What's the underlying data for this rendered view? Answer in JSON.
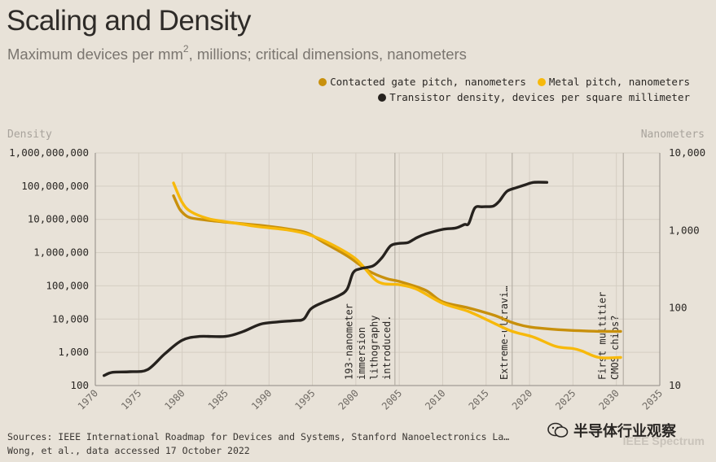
{
  "chart_data": {
    "type": "line",
    "title": "Scaling and Density",
    "subtitle_pre": "Maximum devices per mm",
    "subtitle_sup": "2",
    "subtitle_post": ", millions; critical dimensions, nanometers",
    "left_axis_title": "Density",
    "right_axis_title": "Nanometers",
    "x_range": [
      1970,
      2035
    ],
    "x_ticks": [
      1970,
      1975,
      1980,
      1985,
      1990,
      1995,
      2000,
      2005,
      2010,
      2015,
      2020,
      2025,
      2030,
      2035
    ],
    "left_ylim": [
      100,
      1000000000
    ],
    "left_ticks": [
      {
        "value": 1000000000,
        "label": "1,000,000,000"
      },
      {
        "value": 100000000,
        "label": "100,000,000"
      },
      {
        "value": 10000000,
        "label": "10,000,000"
      },
      {
        "value": 1000000,
        "label": "1,000,000"
      },
      {
        "value": 100000,
        "label": "100,000"
      },
      {
        "value": 10000,
        "label": "10,000"
      },
      {
        "value": 1000,
        "label": "1,000"
      },
      {
        "value": 100,
        "label": "100"
      }
    ],
    "right_ylim": [
      10,
      10000
    ],
    "right_ticks": [
      {
        "value": 10000,
        "label": "10,000"
      },
      {
        "value": 1000,
        "label": "1,000"
      },
      {
        "value": 100,
        "label": "100"
      },
      {
        "value": 10,
        "label": "10"
      }
    ],
    "series": [
      {
        "name": "Contacted gate pitch, nanometers",
        "axis": "right",
        "color": "#c8900c",
        "x": [
          1979,
          1979.7,
          1980.3,
          1981,
          1983,
          1986,
          1990,
          1993,
          1994.5,
          1996.5,
          1999,
          2001.5,
          2003.5,
          2005,
          2008,
          2010,
          2013,
          2016,
          2018,
          2020,
          2024,
          2028,
          2030.5
        ],
        "y": [
          2800,
          1900,
          1600,
          1450,
          1350,
          1250,
          1130,
          1010,
          920,
          680,
          470,
          300,
          240,
          220,
          170,
          120,
          100,
          80,
          65,
          57,
          52,
          50,
          50
        ]
      },
      {
        "name": "Metal pitch, nanometers",
        "axis": "right",
        "color": "#f7b90b",
        "x": [
          1979,
          1980,
          1981,
          1983,
          1985,
          1987,
          1989,
          1992,
          1994.5,
          1997,
          2000,
          2002.5,
          2005,
          2007,
          2010,
          2013,
          2016,
          2018,
          2020.5,
          2023,
          2025,
          2026,
          2028,
          2030.5
        ],
        "y": [
          4100,
          2300,
          1750,
          1420,
          1300,
          1200,
          1110,
          1020,
          890,
          680,
          430,
          220,
          200,
          175,
          115,
          90,
          63,
          50,
          42,
          32,
          30,
          28,
          23,
          23
        ]
      },
      {
        "name": "Transistor density, devices per square millimeter",
        "axis": "left",
        "color": "#26221e",
        "x": [
          1971,
          1972,
          1974,
          1976,
          1978,
          1980,
          1982,
          1985,
          1987,
          1989,
          1991,
          1993,
          1994,
          1994.8,
          1996,
          1998,
          1999,
          1999.7,
          2000.6,
          2002,
          2003,
          2004,
          2005,
          2006,
          2007,
          2008,
          2010,
          2011.5,
          2012.5,
          2013,
          2013.7,
          2014.6,
          2015.8,
          2016.5,
          2017.4,
          2018.5,
          2019.5,
          2020.5,
          2022
        ],
        "y": [
          200,
          250,
          260,
          300,
          900,
          2300,
          3000,
          3000,
          4200,
          7000,
          8200,
          9000,
          10000,
          20000,
          30000,
          50000,
          80000,
          250000,
          330000,
          400000,
          700000,
          1600000,
          1900000,
          2000000,
          2800000,
          3600000,
          5000000,
          5500000,
          7000000,
          7500000,
          22000000,
          24000000,
          25000000,
          35000000,
          70000000,
          90000000,
          110000000,
          130000000,
          130000000
        ]
      }
    ],
    "annotations": [
      {
        "year": 2004.5,
        "label_lines": [
          "193-nanometer",
          "immersion",
          "lithography",
          "introduced."
        ]
      },
      {
        "year": 2018,
        "label_lines": [
          "Extreme-ultravi…"
        ]
      },
      {
        "year": 2030.8,
        "label_lines": [
          "First multitier",
          "CMOS chips?"
        ]
      }
    ]
  },
  "legend": [
    {
      "label": "Contacted gate pitch, nanometers",
      "color": "#c8900c"
    },
    {
      "label": "Metal pitch, nanometers",
      "color": "#f7b90b"
    },
    {
      "label": "Transistor density, devices per square millimeter",
      "color": "#26221e"
    }
  ],
  "footer": {
    "sources_line1": "Sources: IEEE International Roadmap for Devices and Systems, Stanford Nanoelectronics La…",
    "sources_line2": "Wong, et al., data accessed 17 October 2022",
    "watermark_text": "半导体行业观察",
    "brand": "IEEE Spectrum"
  },
  "colors": {
    "background": "#e8e2d8",
    "grid": "#d4cdc2",
    "axis": "#8f8a83"
  }
}
